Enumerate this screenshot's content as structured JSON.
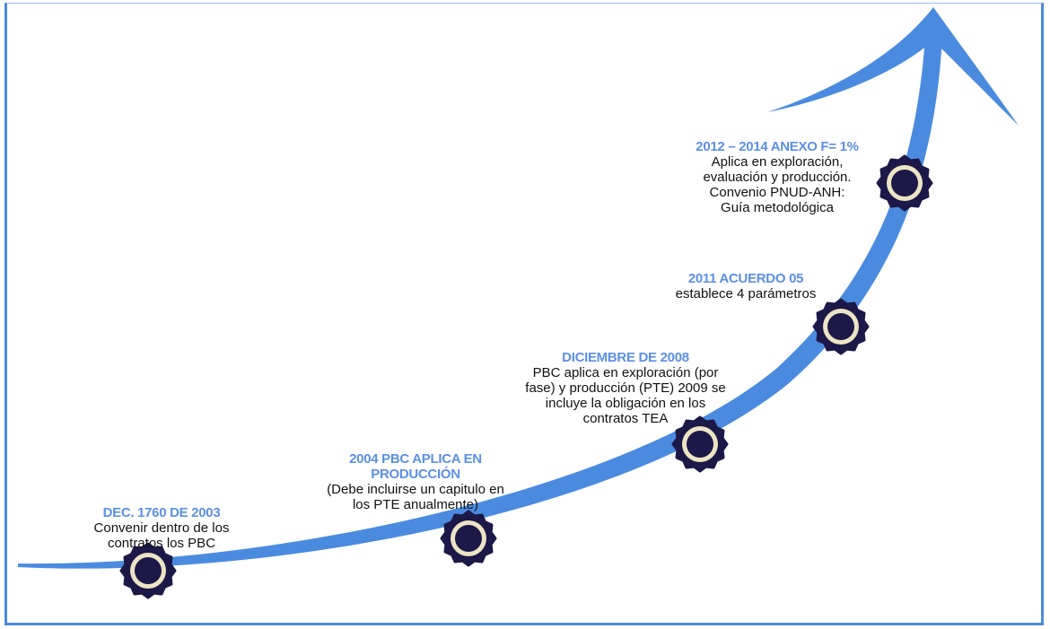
{
  "colors": {
    "accent": "#4a8be0",
    "title": "#5b8fe6",
    "node_dark": "#1c1848",
    "node_ring": "#ece4c4"
  },
  "milestones": [
    {
      "title": [
        "DEC. 1760 DE 2003"
      ],
      "body": [
        "Convenir dentro de los",
        "contratos los PBC"
      ]
    },
    {
      "title": [
        "2004 PBC APLICA EN",
        "PRODUCCIÓN"
      ],
      "body": [
        "(Debe incluirse un capitulo en",
        "los PTE anualmente)"
      ]
    },
    {
      "title": [
        "DICIEMBRE DE 2008"
      ],
      "body": [
        "PBC aplica en exploración (por",
        "fase) y producción (PTE) 2009 se",
        "incluye la obligación en los",
        "contratos TEA"
      ]
    },
    {
      "title": [
        "2011 ACUERDO 05"
      ],
      "body": [
        "establece 4 parámetros"
      ]
    },
    {
      "title": [
        "2012 – 2014 ANEXO F= 1%"
      ],
      "body": [
        "Aplica en exploración,",
        "evaluación y producción.",
        "Convenio PNUD-ANH:",
        "Guía metodológica"
      ]
    }
  ]
}
